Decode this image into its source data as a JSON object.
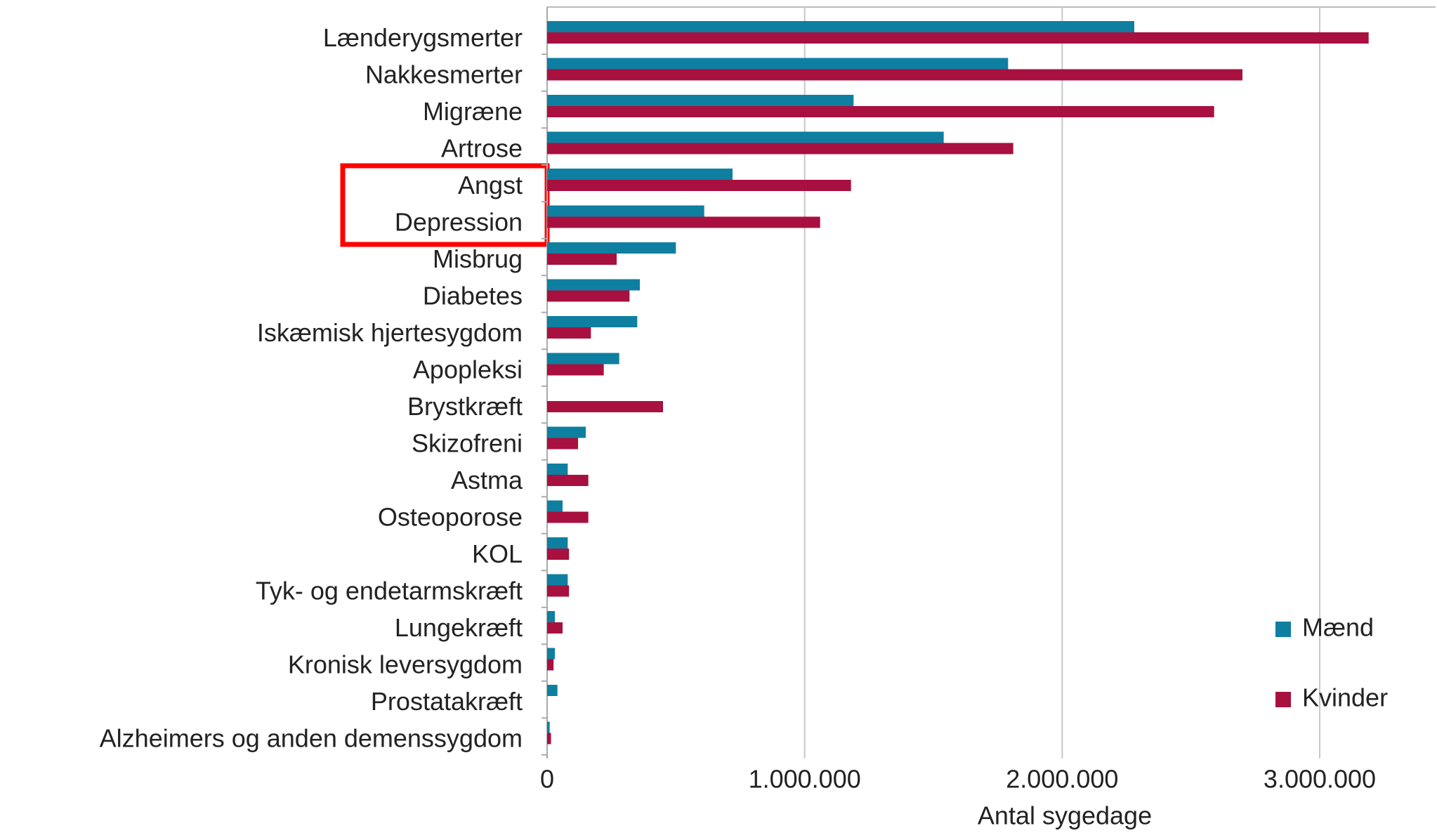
{
  "chart_data": {
    "type": "barh",
    "categories": [
      "Lænderygsmerter",
      "Nakkesmerter",
      "Migræne",
      "Artrose",
      "Angst",
      "Depression",
      "Misbrug",
      "Diabetes",
      "Iskæmisk hjertesygdom",
      "Apopleksi",
      "Brystkræft",
      "Skizofreni",
      "Astma",
      "Osteoporose",
      "KOL",
      "Tyk- og endetarmskræft",
      "Lungekræft",
      "Kronisk leversygdom",
      "Prostatakræft",
      "Alzheimers og anden demenssygdom"
    ],
    "series": [
      {
        "name": "Mænd",
        "color": "#0e7fa0",
        "values": [
          2280000,
          1790000,
          1190000,
          1540000,
          720000,
          610000,
          500000,
          360000,
          350000,
          280000,
          0,
          150000,
          80000,
          60000,
          80000,
          80000,
          30000,
          30000,
          40000,
          10000
        ]
      },
      {
        "name": "Kvinder",
        "color": "#a8103f",
        "values": [
          3190000,
          2700000,
          2590000,
          1810000,
          1180000,
          1060000,
          270000,
          320000,
          170000,
          220000,
          450000,
          120000,
          160000,
          160000,
          85000,
          85000,
          60000,
          25000,
          0,
          15000
        ]
      }
    ],
    "xlabel": "Antal sygedage",
    "xlim": [
      0,
      3450000
    ],
    "xticks": [
      0,
      {
        "value": 1000000,
        "label": "1.000.000"
      },
      {
        "value": 2000000,
        "label": "2.000.000"
      },
      {
        "value": 3000000,
        "label": "3.000.000"
      }
    ],
    "grid": true,
    "legend": "right"
  }
}
